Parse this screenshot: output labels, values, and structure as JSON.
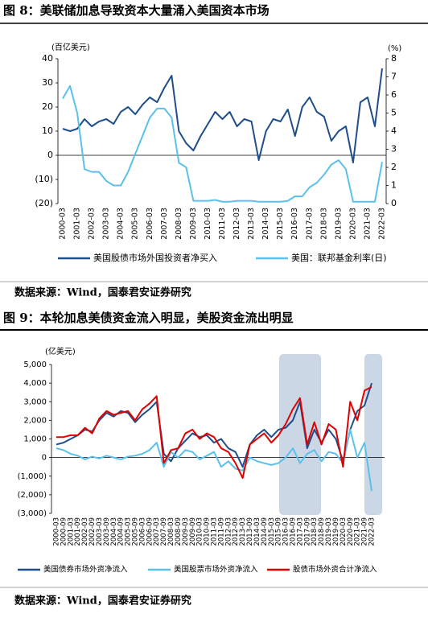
{
  "figure_titles": [
    "图 8：美联储加息导致资本大量涌入美国资本市场",
    "图 9：本轮加息美债资金流入明显，美股资金流出明显"
  ],
  "sources": [
    "数据来源：Wind，国泰君安证券研究",
    "数据来源：Wind，国泰君安证券研究"
  ],
  "chart_data": [
    {
      "type": "line",
      "y_label": "(百亿美元)",
      "y2_label": "(%)",
      "categories": [
        "2000-03",
        null,
        "2001-03",
        null,
        "2002-03",
        null,
        "2003-03",
        null,
        "2004-03",
        null,
        "2005-03",
        null,
        "2006-03",
        null,
        "2007-03",
        null,
        "2008-03",
        null,
        "2009-03",
        null,
        "2010-03",
        null,
        "2011-03",
        null,
        "2012-03",
        null,
        "2013-03",
        null,
        "2014-03",
        null,
        "2015-03",
        null,
        "2016-03",
        null,
        "2017-03",
        null,
        "2018-03",
        null,
        "2019-03",
        null,
        "2020-03",
        null,
        "2021-03",
        null,
        "2022-03"
      ],
      "series": [
        {
          "name": "美国股债市场外国投资者净买入",
          "color": "#1f4e8c",
          "values": [
            11,
            10,
            11,
            15,
            12,
            14,
            15,
            13,
            18,
            20,
            17,
            21,
            24,
            22,
            28,
            33,
            10,
            5,
            2,
            8,
            13,
            18,
            15,
            18,
            12,
            15,
            14,
            -2,
            10,
            15,
            14,
            19,
            8,
            20,
            24,
            18,
            16,
            6,
            10,
            12,
            -3,
            22,
            24,
            12,
            36
          ]
        },
        {
          "name": "美国：联邦基金利率(日)",
          "color": "#5bc0eb",
          "axis": "y2",
          "values": [
            5.8,
            6.5,
            5.0,
            1.9,
            1.75,
            1.75,
            1.25,
            1.0,
            1.0,
            1.75,
            2.75,
            3.75,
            4.75,
            5.25,
            5.25,
            4.75,
            2.25,
            2.0,
            0.15,
            0.15,
            0.15,
            0.2,
            0.1,
            0.1,
            0.15,
            0.15,
            0.15,
            0.1,
            0.1,
            0.1,
            0.1,
            0.15,
            0.4,
            0.4,
            0.9,
            1.15,
            1.6,
            2.15,
            2.4,
            1.9,
            0.1,
            0.1,
            0.1,
            0.1,
            2.3
          ]
        }
      ],
      "ylim": [
        -20,
        40
      ],
      "yticks": [
        {
          "value": -20,
          "label": "(20)"
        },
        {
          "value": -10,
          "label": "(10)"
        },
        0,
        10,
        20,
        30,
        40
      ],
      "y2lim": [
        0,
        8
      ],
      "y2ticks": [
        0,
        1,
        2,
        3,
        4,
        5,
        6,
        7,
        8
      ]
    },
    {
      "type": "line",
      "y_label": "(亿美元)",
      "categories": [
        "2000-03",
        "2000-09",
        "2001-03",
        "2001-09",
        "2002-03",
        "2002-09",
        "2003-03",
        "2003-09",
        "2004-03",
        "2004-09",
        "2005-03",
        "2005-09",
        "2006-03",
        "2006-09",
        "2007-03",
        "2007-09",
        "2008-03",
        "2008-09",
        "2009-03",
        "2009-09",
        "2010-03",
        "2010-09",
        "2011-03",
        "2011-09",
        "2012-03",
        "2012-09",
        "2013-03",
        "2013-09",
        "2014-03",
        "2014-09",
        "2015-03",
        "2015-09",
        "2016-03",
        "2016-09",
        "2017-03",
        "2017-09",
        "2018-03",
        "2018-09",
        "2019-03",
        "2019-09",
        "2020-03",
        "2020-09",
        "2021-03",
        "2021-09",
        "2022-03"
      ],
      "series": [
        {
          "name": "美国债券市场外资净流入",
          "color": "#1f4e8c",
          "values": [
            700,
            800,
            1000,
            1200,
            1500,
            1400,
            2000,
            2400,
            2200,
            2500,
            2400,
            1900,
            2300,
            2600,
            3000,
            200,
            -200,
            500,
            900,
            1300,
            1100,
            1200,
            800,
            1000,
            500,
            300,
            -500,
            700,
            1200,
            1500,
            1100,
            1500,
            1600,
            2000,
            3000,
            500,
            1500,
            800,
            1500,
            1000,
            -200,
            1500,
            2500,
            2800,
            4000
          ]
        },
        {
          "name": "美国股票市场外资净流入",
          "color": "#5bc0eb",
          "values": [
            500,
            400,
            200,
            100,
            -100,
            50,
            -50,
            100,
            0,
            -100,
            50,
            100,
            200,
            400,
            800,
            -500,
            300,
            0,
            400,
            300,
            -100,
            100,
            300,
            -500,
            -200,
            -600,
            -700,
            0,
            -200,
            -300,
            -400,
            -300,
            0,
            500,
            -300,
            200,
            400,
            -200,
            300,
            200,
            -300,
            1500,
            0,
            800,
            -1800
          ]
        },
        {
          "name": "股债市场外资合计净流入",
          "color": "#e00000",
          "values": [
            1100,
            1100,
            1200,
            1200,
            1600,
            1300,
            2100,
            2500,
            2300,
            2400,
            2500,
            2000,
            2600,
            2900,
            3300,
            -300,
            400,
            500,
            1300,
            1500,
            1000,
            1300,
            1100,
            500,
            300,
            -300,
            -1100,
            700,
            1000,
            1300,
            800,
            1200,
            1800,
            2600,
            3200,
            700,
            1900,
            700,
            1800,
            1500,
            -500,
            3000,
            2000,
            3600,
            3800
          ]
        }
      ],
      "ylim": [
        -3000,
        5000
      ],
      "yticks": [
        {
          "value": -3000,
          "label": "(3,000)"
        },
        {
          "value": -2000,
          "label": "(2,000)"
        },
        {
          "value": -1000,
          "label": "(1,000)"
        },
        0,
        {
          "value": 1000,
          "label": "1,000"
        },
        {
          "value": 2000,
          "label": "2,000"
        },
        {
          "value": 3000,
          "label": "3,000"
        },
        {
          "value": 4000,
          "label": "4,000"
        },
        {
          "value": 5000,
          "label": "5,000"
        }
      ]
    }
  ]
}
